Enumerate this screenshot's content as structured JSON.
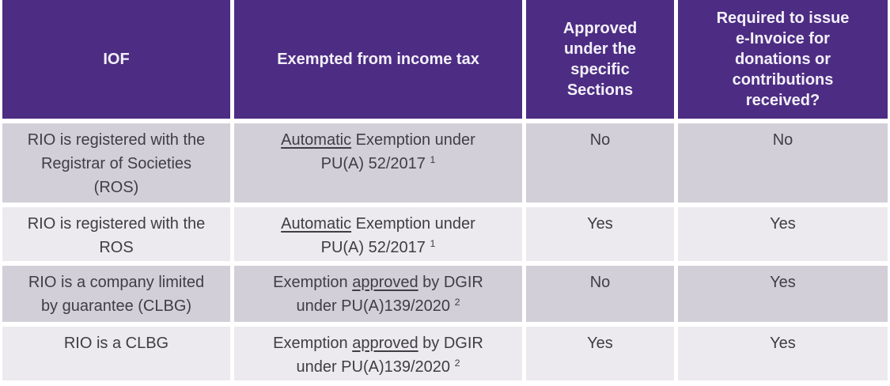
{
  "colors": {
    "header_bg": "#4d2d83",
    "header_text": "#f3f0f9",
    "row_gray": "#d2cfd8",
    "row_light": "#eceaee",
    "body_text": "#3f3d45",
    "gap": "#ffffff"
  },
  "table": {
    "headers": {
      "iof": "IOF",
      "exemption": "Exempted from income tax",
      "approved": "Approved\nunder the\nspecific\nSections",
      "einvoice": "Required to issue\ne-Invoice for\ndonations or\ncontributions\nreceived?"
    },
    "rows": [
      {
        "iof": "RIO is registered with the\nRegistrar of Societies\n(ROS)",
        "exemption_parts": [
          {
            "text": "Automatic",
            "style": "underline"
          },
          {
            "text": " Exemption under\nPU(A) 52/2017 ",
            "style": "normal"
          },
          {
            "text": "1",
            "style": "sup"
          }
        ],
        "approved": "No",
        "einvoice": "No"
      },
      {
        "iof": "RIO is registered with the\nROS",
        "exemption_parts": [
          {
            "text": "Automatic",
            "style": "underline"
          },
          {
            "text": " Exemption under\nPU(A) 52/2017 ",
            "style": "normal"
          },
          {
            "text": "1",
            "style": "sup"
          }
        ],
        "approved": "Yes",
        "einvoice": "Yes"
      },
      {
        "iof": "RIO is a company limited\nby guarantee (CLBG)",
        "exemption_parts": [
          {
            "text": "Exemption ",
            "style": "normal"
          },
          {
            "text": "approved",
            "style": "underline"
          },
          {
            "text": " by DGIR\nunder PU(A)139/2020 ",
            "style": "normal"
          },
          {
            "text": "2",
            "style": "sup"
          }
        ],
        "approved": "No",
        "einvoice": "Yes"
      },
      {
        "iof": "RIO is a CLBG",
        "exemption_parts": [
          {
            "text": "Exemption ",
            "style": "normal"
          },
          {
            "text": "approved",
            "style": "underline"
          },
          {
            "text": " by DGIR\nunder PU(A)139/2020 ",
            "style": "normal"
          },
          {
            "text": "2",
            "style": "sup"
          }
        ],
        "approved": "Yes",
        "einvoice": "Yes"
      }
    ]
  }
}
